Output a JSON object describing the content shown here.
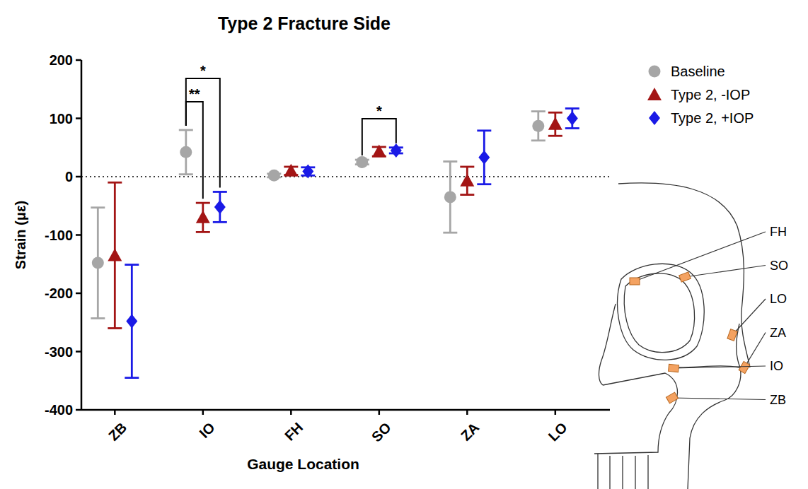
{
  "chart_data": {
    "type": "scatter",
    "title": "Type 2 Fracture Side",
    "x_label": "Gauge Location",
    "y_label": "Strain (με)",
    "categories": [
      "ZB",
      "IO",
      "FH",
      "SO",
      "ZA",
      "LO"
    ],
    "series": [
      {
        "name": "Baseline",
        "color": "#a6a6a6",
        "marker": "circle",
        "values": [
          -148,
          42,
          2,
          25,
          -35,
          87
        ],
        "errors": [
          95,
          38,
          3,
          4,
          61,
          25
        ]
      },
      {
        "name": "Type 2, -IOP",
        "color": "#a31515",
        "marker": "triangle",
        "values": [
          -135,
          -70,
          10,
          43,
          -7,
          90
        ],
        "errors": [
          125,
          25,
          7,
          8,
          24,
          20
        ]
      },
      {
        "name": "Type 2, +IOP",
        "color": "#1a1ae6",
        "marker": "diamond",
        "values": [
          -248,
          -52,
          9,
          45,
          33,
          100
        ],
        "errors": [
          97,
          26,
          7,
          5,
          46,
          17
        ]
      }
    ],
    "ylim": [
      -400,
      200
    ],
    "yticks": [
      -400,
      -300,
      -200,
      -100,
      0,
      100,
      200
    ],
    "reference_lines": [
      0
    ],
    "legend": "top-right",
    "annotations": [
      {
        "text": "**",
        "category": 1,
        "from": 0,
        "to": 1
      },
      {
        "text": "*",
        "category": 1,
        "from": 0,
        "to": 2
      },
      {
        "text": "*",
        "category": 3,
        "from": 0,
        "to": 2
      }
    ]
  },
  "diagram": {
    "labels": [
      "FH",
      "SO",
      "LO",
      "ZA",
      "IO",
      "ZB"
    ]
  }
}
